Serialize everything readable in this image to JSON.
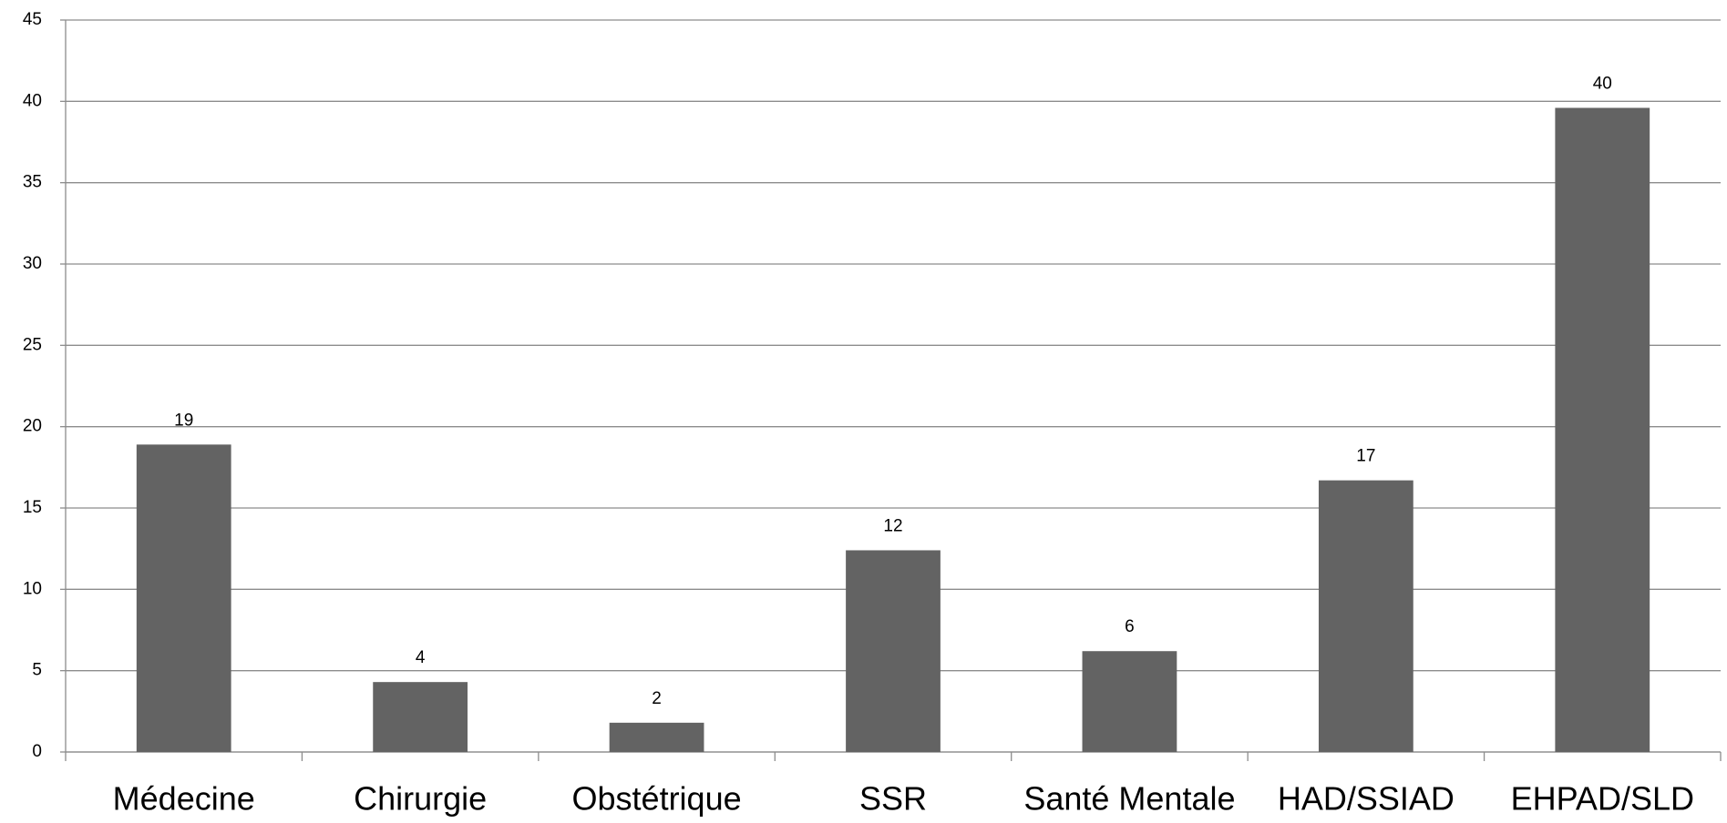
{
  "chart_data": {
    "type": "bar",
    "categories": [
      "Médecine",
      "Chirurgie",
      "Obstétrique",
      "SSR",
      "Santé Mentale",
      "HAD/SSIAD",
      "EHPAD/SLD"
    ],
    "values": [
      18.9,
      4.3,
      1.8,
      12.4,
      6.2,
      16.7,
      39.6
    ],
    "value_labels": [
      "19",
      "4",
      "2",
      "12",
      "6",
      "17",
      "40"
    ],
    "color": "#636363",
    "ylim": [
      0,
      45
    ],
    "yticks": [
      0,
      5,
      10,
      15,
      20,
      25,
      30,
      35,
      40,
      45
    ],
    "grid": true
  }
}
